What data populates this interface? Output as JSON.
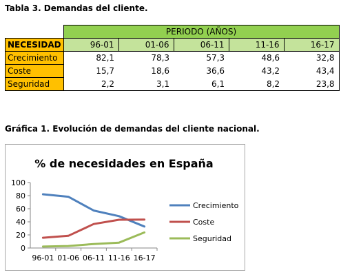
{
  "table_caption": "Tabla 3. Demandas del cliente.",
  "chart_caption": "Gráfica 1. Evolución de demandas del cliente nacional.",
  "table": {
    "period_header": "PERIODO (AÑOS)",
    "need_header": "NECESIDAD",
    "years": [
      "96-01",
      "01-06",
      "06-11",
      "11-16",
      "16-17"
    ],
    "rows": [
      {
        "label": "Crecimiento",
        "values": [
          "82,1",
          "78,3",
          "57,3",
          "48,6",
          "32,8"
        ]
      },
      {
        "label": "Coste",
        "values": [
          "15,7",
          "18,6",
          "36,6",
          "43,2",
          "43,4"
        ]
      },
      {
        "label": "Seguridad",
        "values": [
          "2,2",
          "3,1",
          "6,1",
          "8,2",
          "23,8"
        ]
      }
    ]
  },
  "chart_data": {
    "type": "line",
    "title": "% de necesidades en España",
    "categories": [
      "96-01",
      "01-06",
      "06-11",
      "11-16",
      "16-17"
    ],
    "ylim": [
      0,
      100
    ],
    "yticks": [
      "0",
      "20",
      "40",
      "60",
      "80",
      "100"
    ],
    "grid": false,
    "legend": "right",
    "series": [
      {
        "name": "Crecimiento",
        "color": "#4f81bd",
        "values": [
          82.1,
          78.3,
          57.3,
          48.6,
          32.8
        ]
      },
      {
        "name": "Coste",
        "color": "#c0504d",
        "values": [
          15.7,
          18.6,
          36.6,
          43.2,
          43.4
        ]
      },
      {
        "name": "Seguridad",
        "color": "#9bbb59",
        "values": [
          2.2,
          3.1,
          6.1,
          8.2,
          23.8
        ]
      }
    ]
  }
}
